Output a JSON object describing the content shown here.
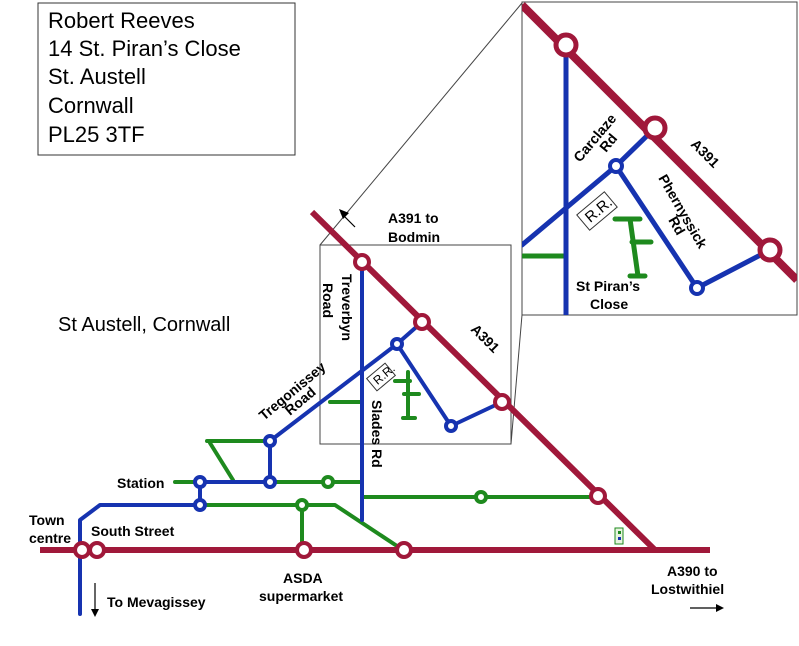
{
  "address": {
    "lines": [
      "Robert Reeves",
      "14 St. Piran’s Close",
      "St. Austell",
      "Cornwall",
      "PL25 3TF"
    ]
  },
  "region_title": "St Austell, Cornwall",
  "labels": {
    "a391_bodmin_1": "A391 to",
    "a391_bodmin_2": "Bodmin",
    "treverbyn_1": "Treverbyn",
    "treverbyn_2": "Road",
    "a391": "A391",
    "tregonissey_1": "Tregonissey",
    "tregonissey_2": "Road",
    "slades": "Slades Rd",
    "station": "Station",
    "town_centre_1": "Town",
    "town_centre_2": "centre",
    "south_street": "South Street",
    "to_mevagissey": "To Mevagissey",
    "asda_1": "ASDA",
    "asda_2": "supermarket",
    "a390_1": "A390 to",
    "a390_2": "Lostwithiel",
    "rr": "R.R."
  },
  "inset": {
    "carclaze_1": "Carclaze",
    "carclaze_2": "Rd",
    "a391": "A391",
    "phernyssick_1": "Phernyssick",
    "phernyssick_2": "Rd",
    "rr": "R.R.",
    "st_pirans_1": "St Piran’s",
    "st_pirans_2": "Close"
  },
  "colors": {
    "main_road": "#A0183A",
    "road": "#1633B0",
    "minor_road": "#1E8A1E",
    "frame": "#555555"
  },
  "icons": [
    "north-arrow-icon",
    "south-arrow-icon",
    "east-arrow-icon",
    "small-marker-icon"
  ]
}
